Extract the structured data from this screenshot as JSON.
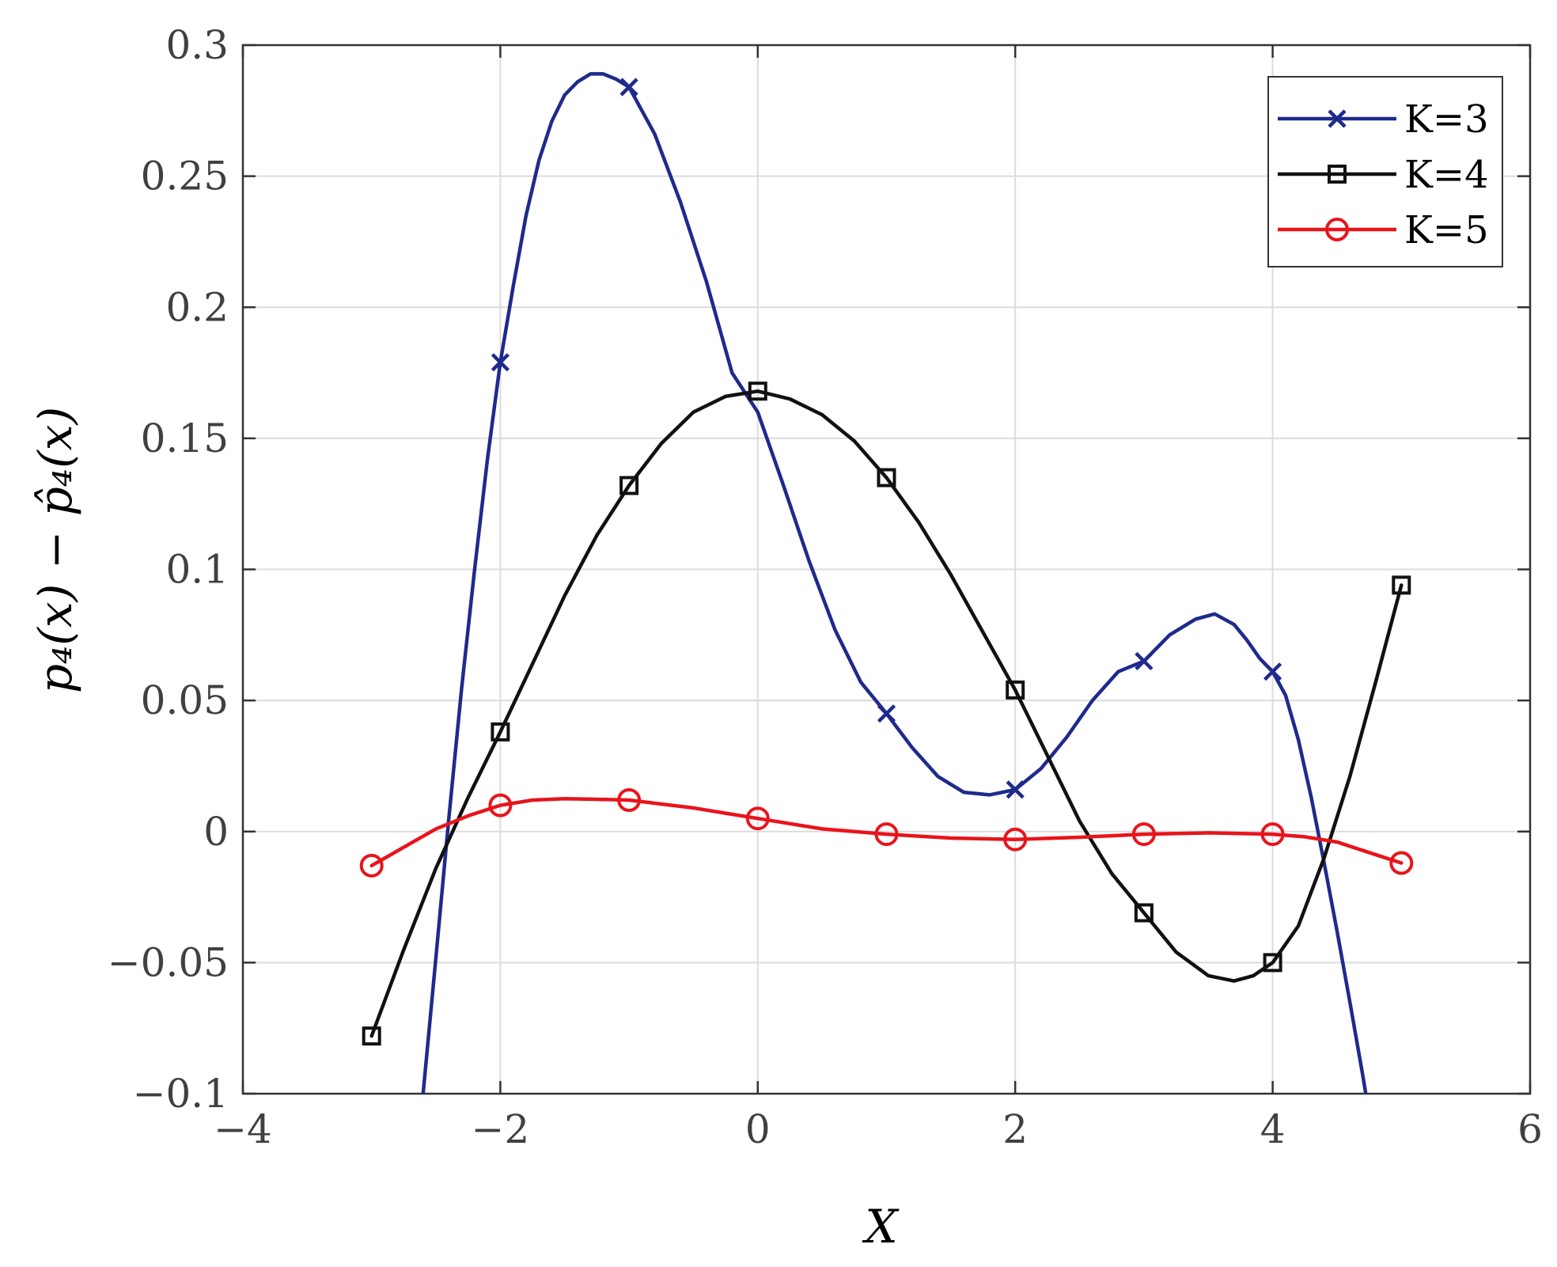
{
  "chart_data": {
    "type": "line",
    "title": "",
    "xlabel": "X",
    "ylabel": "p₄(x) − p̂₄(x)",
    "xlim": [
      -4,
      6
    ],
    "ylim": [
      -0.1,
      0.3
    ],
    "xticks": [
      -4,
      -2,
      0,
      2,
      4,
      6
    ],
    "xtick_labels": [
      "−4",
      "−2",
      "0",
      "2",
      "4",
      "6"
    ],
    "yticks": [
      -0.1,
      -0.05,
      0,
      0.05,
      0.1,
      0.15,
      0.2,
      0.25,
      0.3
    ],
    "ytick_labels": [
      "−0.1",
      "−0.05",
      "0",
      "0.05",
      "0.1",
      "0.15",
      "0.2",
      "0.25",
      "0.3"
    ],
    "grid": true,
    "legend_position": "top-right",
    "series": [
      {
        "name": "K=3",
        "color": "#1f2a8c",
        "marker": "x",
        "marker_x": [
          -2,
          -1,
          1,
          2,
          3,
          4
        ],
        "marker_y": [
          0.179,
          0.284,
          0.045,
          0.016,
          0.065,
          0.061
        ],
        "curve_x": [
          -2.65,
          -2.6,
          -2.5,
          -2.4,
          -2.3,
          -2.2,
          -2.1,
          -2.0,
          -1.9,
          -1.8,
          -1.7,
          -1.6,
          -1.5,
          -1.4,
          -1.3,
          -1.2,
          -1.1,
          -1.0,
          -0.8,
          -0.6,
          -0.4,
          -0.2,
          0.0,
          0.2,
          0.4,
          0.6,
          0.8,
          1.0,
          1.2,
          1.4,
          1.6,
          1.8,
          2.0,
          2.2,
          2.4,
          2.6,
          2.8,
          3.0,
          3.2,
          3.4,
          3.55,
          3.7,
          3.8,
          3.9,
          4.0,
          4.1,
          4.2,
          4.3,
          4.4,
          4.5,
          4.6,
          4.7,
          4.74
        ],
        "curve_y": [
          -0.11,
          -0.1,
          -0.048,
          0.005,
          0.055,
          0.1,
          0.142,
          0.179,
          0.208,
          0.235,
          0.256,
          0.271,
          0.281,
          0.286,
          0.289,
          0.289,
          0.287,
          0.284,
          0.266,
          0.24,
          0.21,
          0.175,
          0.16,
          0.132,
          0.103,
          0.077,
          0.057,
          0.045,
          0.032,
          0.021,
          0.015,
          0.014,
          0.016,
          0.024,
          0.036,
          0.05,
          0.061,
          0.065,
          0.075,
          0.081,
          0.083,
          0.079,
          0.073,
          0.066,
          0.061,
          0.052,
          0.035,
          0.013,
          -0.012,
          -0.038,
          -0.065,
          -0.093,
          -0.105
        ]
      },
      {
        "name": "K=4",
        "color": "#111111",
        "marker": "square",
        "marker_x": [
          -3,
          -2,
          -1,
          0,
          1,
          2,
          3,
          4,
          5
        ],
        "marker_y": [
          -0.078,
          0.038,
          0.132,
          0.168,
          0.135,
          0.054,
          -0.031,
          -0.05,
          0.094
        ],
        "curve_x": [
          -3.0,
          -2.75,
          -2.5,
          -2.25,
          -2.0,
          -1.75,
          -1.5,
          -1.25,
          -1.0,
          -0.75,
          -0.5,
          -0.25,
          0.0,
          0.25,
          0.5,
          0.75,
          1.0,
          1.25,
          1.5,
          1.75,
          2.0,
          2.25,
          2.5,
          2.75,
          3.0,
          3.25,
          3.5,
          3.7,
          3.85,
          4.0,
          4.2,
          4.4,
          4.6,
          4.8,
          5.0
        ],
        "curve_y": [
          -0.078,
          -0.045,
          -0.014,
          0.013,
          0.038,
          0.064,
          0.09,
          0.113,
          0.132,
          0.148,
          0.16,
          0.166,
          0.168,
          0.165,
          0.159,
          0.149,
          0.135,
          0.118,
          0.098,
          0.076,
          0.054,
          0.029,
          0.004,
          -0.016,
          -0.031,
          -0.046,
          -0.055,
          -0.057,
          -0.055,
          -0.05,
          -0.036,
          -0.01,
          0.021,
          0.057,
          0.094
        ]
      },
      {
        "name": "K=5",
        "color": "#e8141c",
        "marker": "circle",
        "marker_x": [
          -3,
          -2,
          -1,
          0,
          1,
          2,
          3,
          4,
          5
        ],
        "marker_y": [
          -0.013,
          0.01,
          0.012,
          0.005,
          -0.001,
          -0.003,
          -0.001,
          -0.001,
          -0.012
        ],
        "curve_x": [
          -3.0,
          -2.75,
          -2.5,
          -2.25,
          -2.0,
          -1.75,
          -1.5,
          -1.25,
          -1.0,
          -0.75,
          -0.5,
          -0.25,
          0.0,
          0.25,
          0.5,
          0.75,
          1.0,
          1.5,
          2.0,
          2.5,
          3.0,
          3.5,
          4.0,
          4.25,
          4.5,
          4.75,
          5.0
        ],
        "curve_y": [
          -0.013,
          -0.006,
          0.001,
          0.006,
          0.01,
          0.012,
          0.0125,
          0.0123,
          0.012,
          0.0105,
          0.009,
          0.007,
          0.005,
          0.003,
          0.001,
          0.0,
          -0.001,
          -0.0025,
          -0.003,
          -0.0022,
          -0.001,
          -0.0005,
          -0.001,
          -0.002,
          -0.004,
          -0.008,
          -0.012
        ]
      }
    ]
  }
}
